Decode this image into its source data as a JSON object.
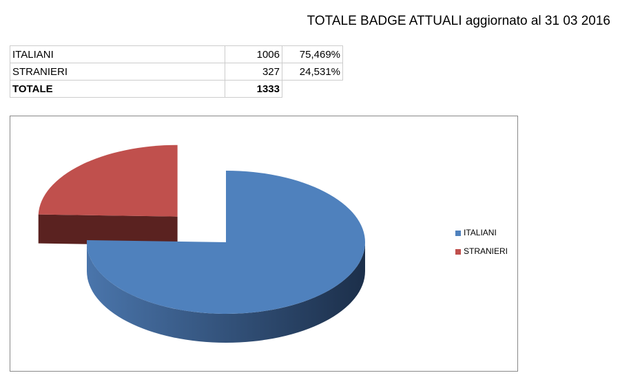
{
  "title": "TOTALE BADGE ATTUALI aggiornato al 31 03 2016",
  "table": {
    "rows": [
      [
        "ITALIANI",
        1006,
        "75,469%"
      ],
      [
        "STRANIERI",
        327,
        "24,531%"
      ],
      [
        "TOTALE",
        1333
      ]
    ]
  },
  "chart_data": {
    "type": "pie",
    "categories": [
      "ITALIANI",
      "STRANIERI"
    ],
    "values": [
      1006,
      327
    ],
    "colors": [
      "#4f81bd",
      "#c0504d"
    ],
    "side_colors": [
      "#2f4d75",
      "#5a2220"
    ],
    "legend": "right"
  }
}
